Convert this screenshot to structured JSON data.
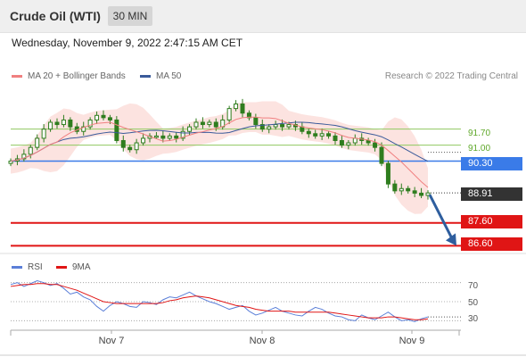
{
  "header": {
    "title": "Crude Oil (WTI)",
    "timeframe": "30 MIN"
  },
  "datetime": "Wednesday, November 9, 2022 2:47:15 AM CET",
  "legend": {
    "ma20_label": "MA 20 + Bollinger Bands",
    "ma20_color": "#f08080",
    "ma50_label": "MA 50",
    "ma50_color": "#3a5a9a"
  },
  "copyright": "Research © 2022 Trading Central",
  "levels": {
    "r2": "91.70",
    "r1": "91.00",
    "pivot": "90.30",
    "last": "88.91",
    "s1": "87.60",
    "s2": "86.60"
  },
  "colors": {
    "pivot": "#3a7be8",
    "support": "#e01515",
    "resistance": "#8fc860",
    "last": "#333333",
    "candle": "#2f7d1e",
    "arrow": "#2e5e9e"
  },
  "rsi_legend": {
    "rsi_label": "RSI",
    "ma_label": "9MA"
  },
  "rsi_axis": [
    "70",
    "50",
    "30"
  ],
  "dates": [
    "Nov 7",
    "Nov 8",
    "Nov 9"
  ],
  "chart_data": {
    "type": "line",
    "title": "Crude Oil (WTI)",
    "timeframe": "30 MIN",
    "price_ylim": [
      86.3,
      93.6
    ],
    "closes": [
      90.3,
      90.4,
      90.6,
      90.9,
      91.3,
      91.7,
      92.0,
      91.9,
      92.1,
      91.8,
      91.6,
      91.8,
      92.1,
      92.3,
      92.2,
      92.1,
      91.2,
      90.9,
      90.8,
      91.1,
      91.3,
      91.4,
      91.4,
      91.3,
      91.4,
      91.3,
      91.6,
      91.8,
      92.0,
      91.9,
      92.0,
      91.8,
      92.1,
      92.6,
      92.8,
      92.4,
      92.2,
      91.9,
      91.7,
      91.8,
      91.9,
      91.8,
      91.9,
      91.8,
      91.6,
      91.5,
      91.4,
      91.5,
      91.4,
      91.2,
      91.0,
      91.1,
      91.3,
      91.2,
      91.1,
      90.9,
      90.2,
      89.3,
      89.0,
      89.1,
      89.0,
      88.9,
      88.8,
      88.91
    ],
    "series": [
      {
        "name": "MA 50"
      },
      {
        "name": "MA 20 + Bollinger Bands"
      }
    ],
    "levels": [
      91.7,
      91.0,
      90.3,
      88.91,
      87.6,
      86.6
    ],
    "x_labels": [
      "Nov 7",
      "Nov 8",
      "Nov 9"
    ],
    "rsi": {
      "ylim": [
        20,
        80
      ],
      "ticks": [
        70,
        50,
        30
      ],
      "rsi_values": [
        68,
        70,
        66,
        69,
        72,
        70,
        67,
        69,
        64,
        58,
        60,
        55,
        52,
        45,
        40,
        46,
        50,
        48,
        45,
        44,
        50,
        49,
        47,
        52,
        55,
        54,
        57,
        60,
        56,
        53,
        50,
        48,
        45,
        42,
        44,
        46,
        40,
        36,
        38,
        41,
        44,
        40,
        38,
        36,
        35,
        40,
        44,
        42,
        38,
        35,
        34,
        31,
        30,
        36,
        33,
        31,
        35,
        39,
        34,
        30,
        31,
        29,
        32,
        34
      ],
      "ma_values": [
        66,
        67,
        68,
        68,
        69,
        69,
        68,
        68,
        66,
        64,
        62,
        59,
        56,
        53,
        50,
        49,
        48,
        48,
        48,
        48,
        48,
        48,
        48,
        49,
        51,
        52,
        54,
        55,
        56,
        55,
        54,
        52,
        50,
        48,
        46,
        45,
        44,
        42,
        41,
        40,
        40,
        40,
        40,
        39,
        39,
        39,
        39,
        39,
        39,
        38,
        37,
        36,
        35,
        34,
        33,
        33,
        33,
        34,
        34,
        33,
        32,
        31,
        31,
        32
      ]
    }
  }
}
